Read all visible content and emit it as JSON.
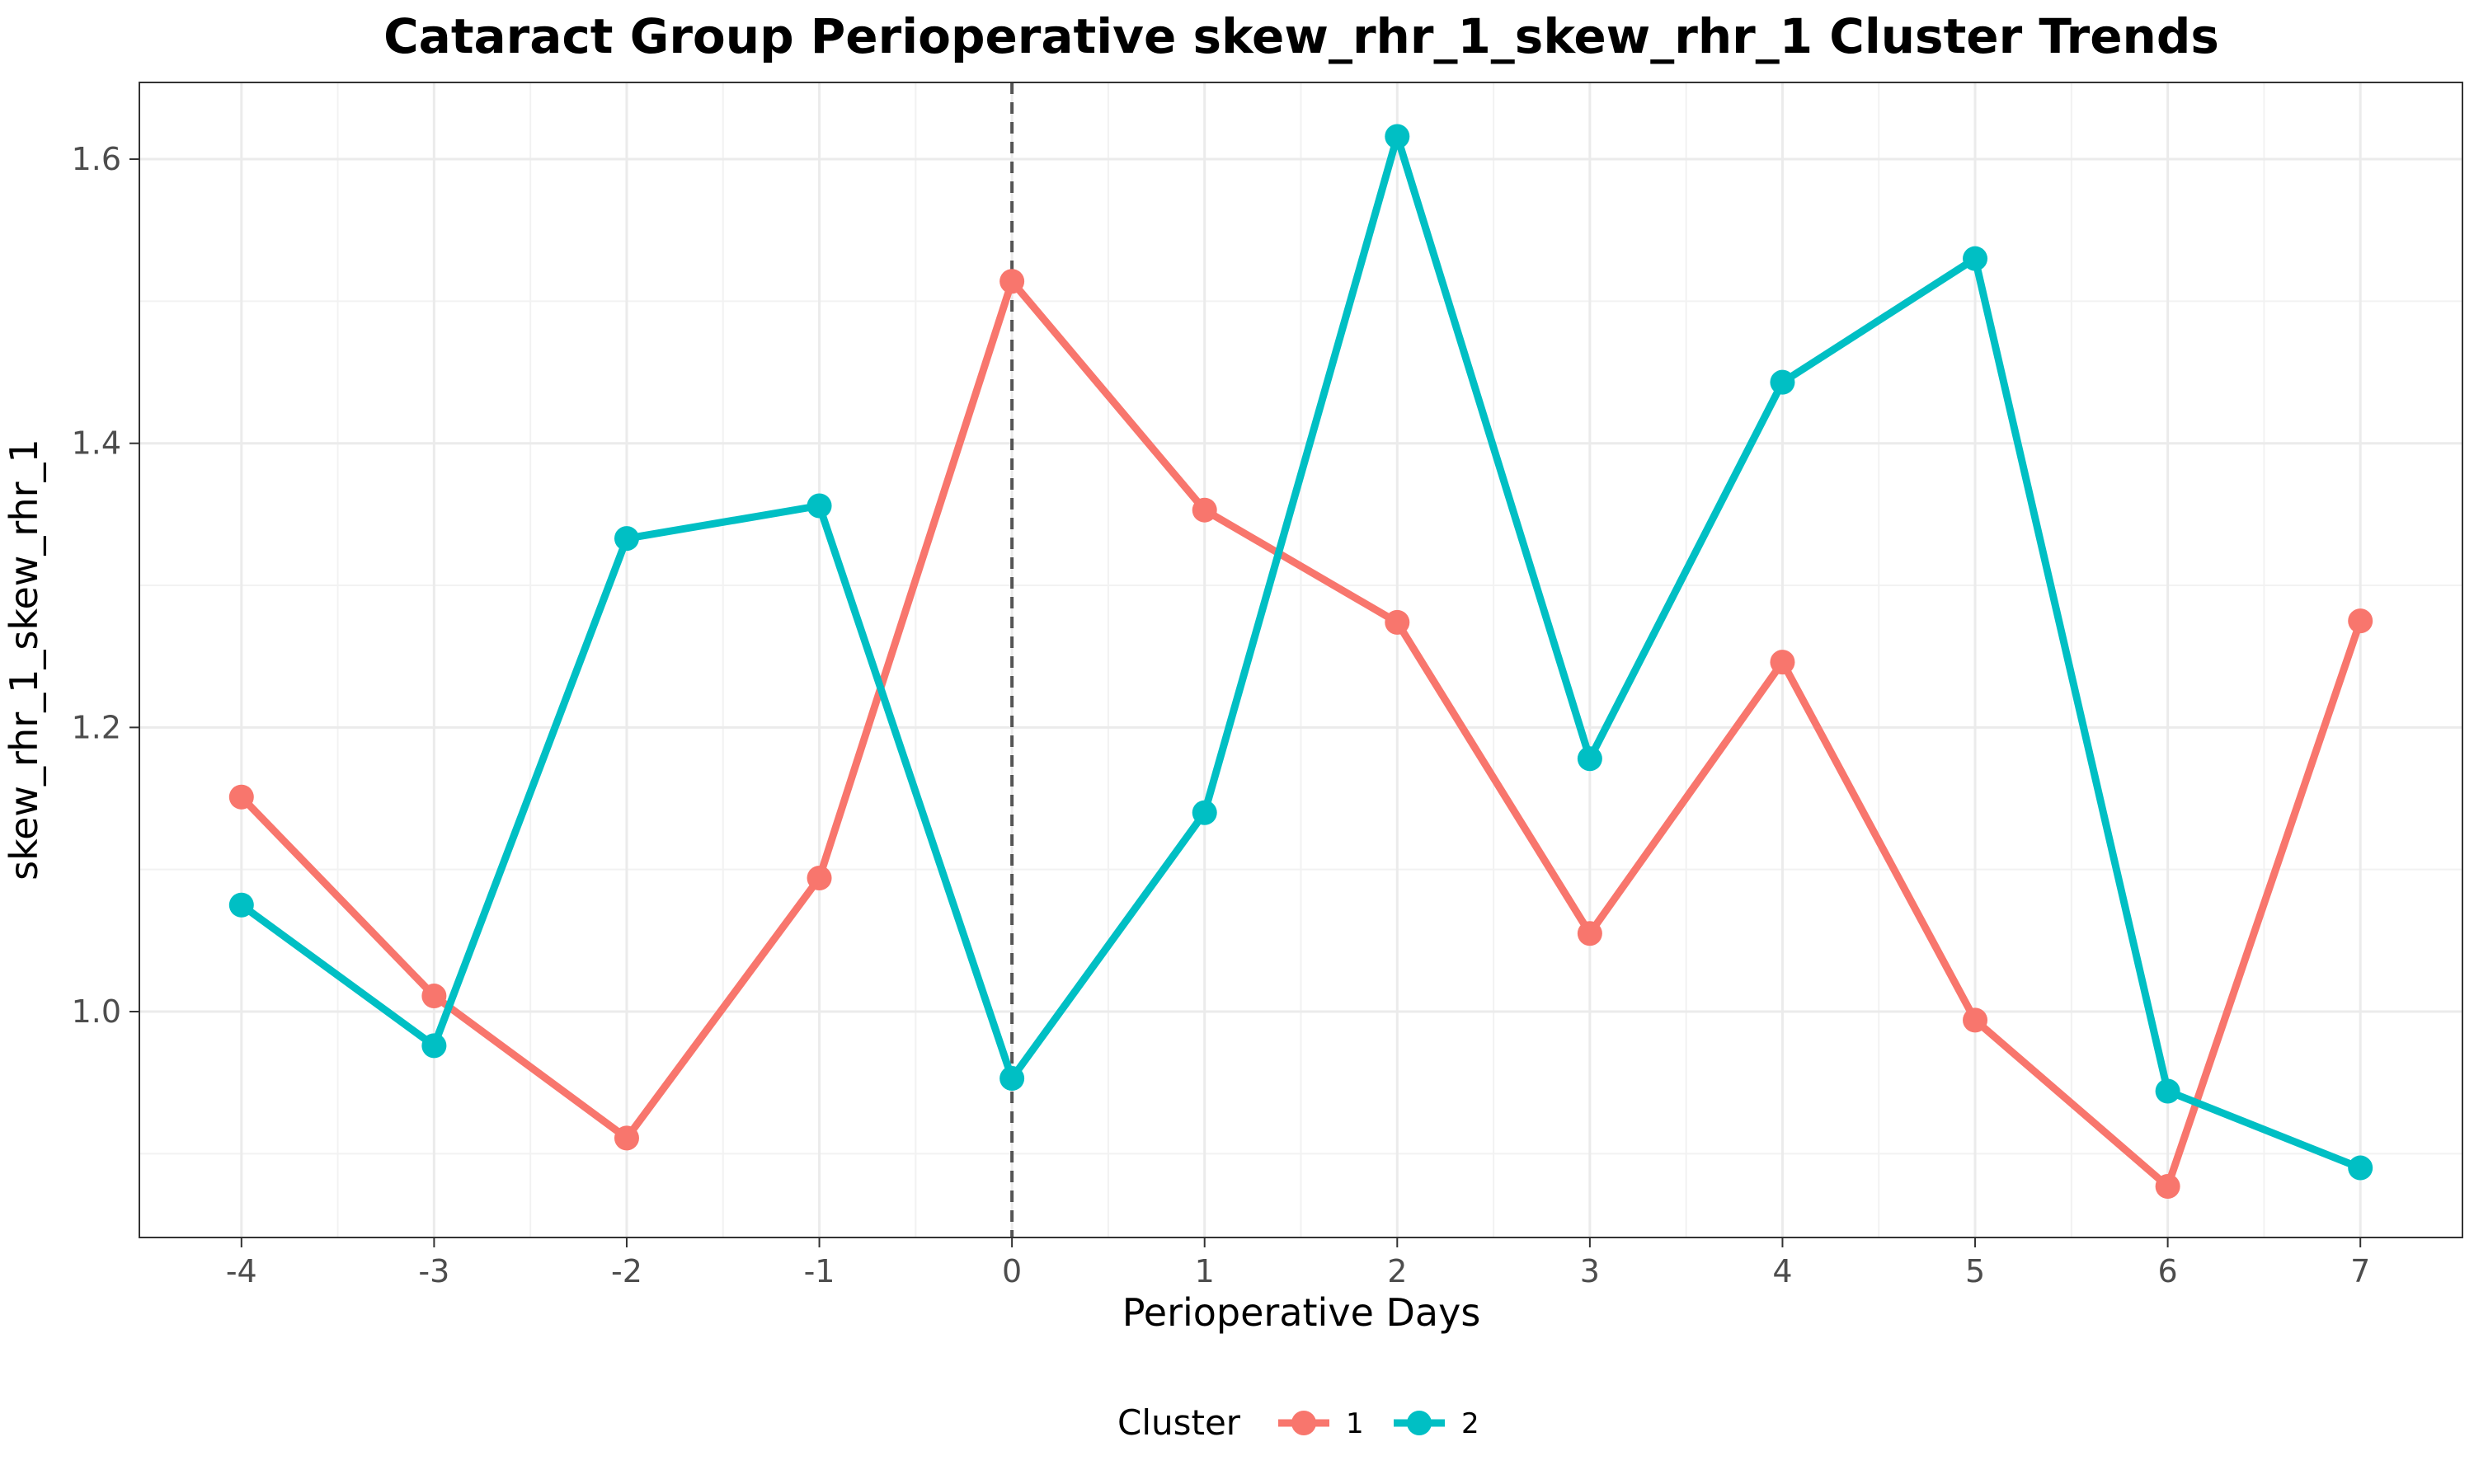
{
  "chart_data": {
    "type": "line",
    "title": "Cataract Group Perioperative skew_rhr_1_skew_rhr_1 Cluster Trends",
    "xlabel": "Perioperative Days",
    "ylabel": "skew_rhr_1_skew_rhr_1",
    "x": [
      -4,
      -3,
      -2,
      -1,
      0,
      1,
      2,
      3,
      4,
      5,
      6,
      7
    ],
    "x_tick_labels": [
      "-4",
      "-3",
      "-2",
      "-1",
      "0",
      "1",
      "2",
      "3",
      "4",
      "5",
      "6",
      "7"
    ],
    "y_ticks": [
      1.0,
      1.2,
      1.4,
      1.6
    ],
    "y_tick_labels": [
      "1.0",
      "1.2",
      "1.4",
      "1.6"
    ],
    "xlim": [
      -4.53,
      7.53
    ],
    "ylim": [
      0.841,
      1.654
    ],
    "grid": true,
    "vline_x": 0,
    "legend": {
      "title": "Cluster",
      "placement": "bottom"
    },
    "series": [
      {
        "name": "1",
        "color": "#F8766D",
        "values": [
          1.151,
          1.011,
          0.911,
          1.094,
          1.514,
          1.353,
          1.274,
          1.055,
          1.246,
          0.994,
          0.877,
          1.275
        ]
      },
      {
        "name": "2",
        "color": "#00BFC4",
        "values": [
          1.075,
          0.976,
          1.333,
          1.356,
          0.953,
          1.14,
          1.616,
          1.178,
          1.443,
          1.53,
          0.944,
          0.89
        ]
      }
    ]
  }
}
